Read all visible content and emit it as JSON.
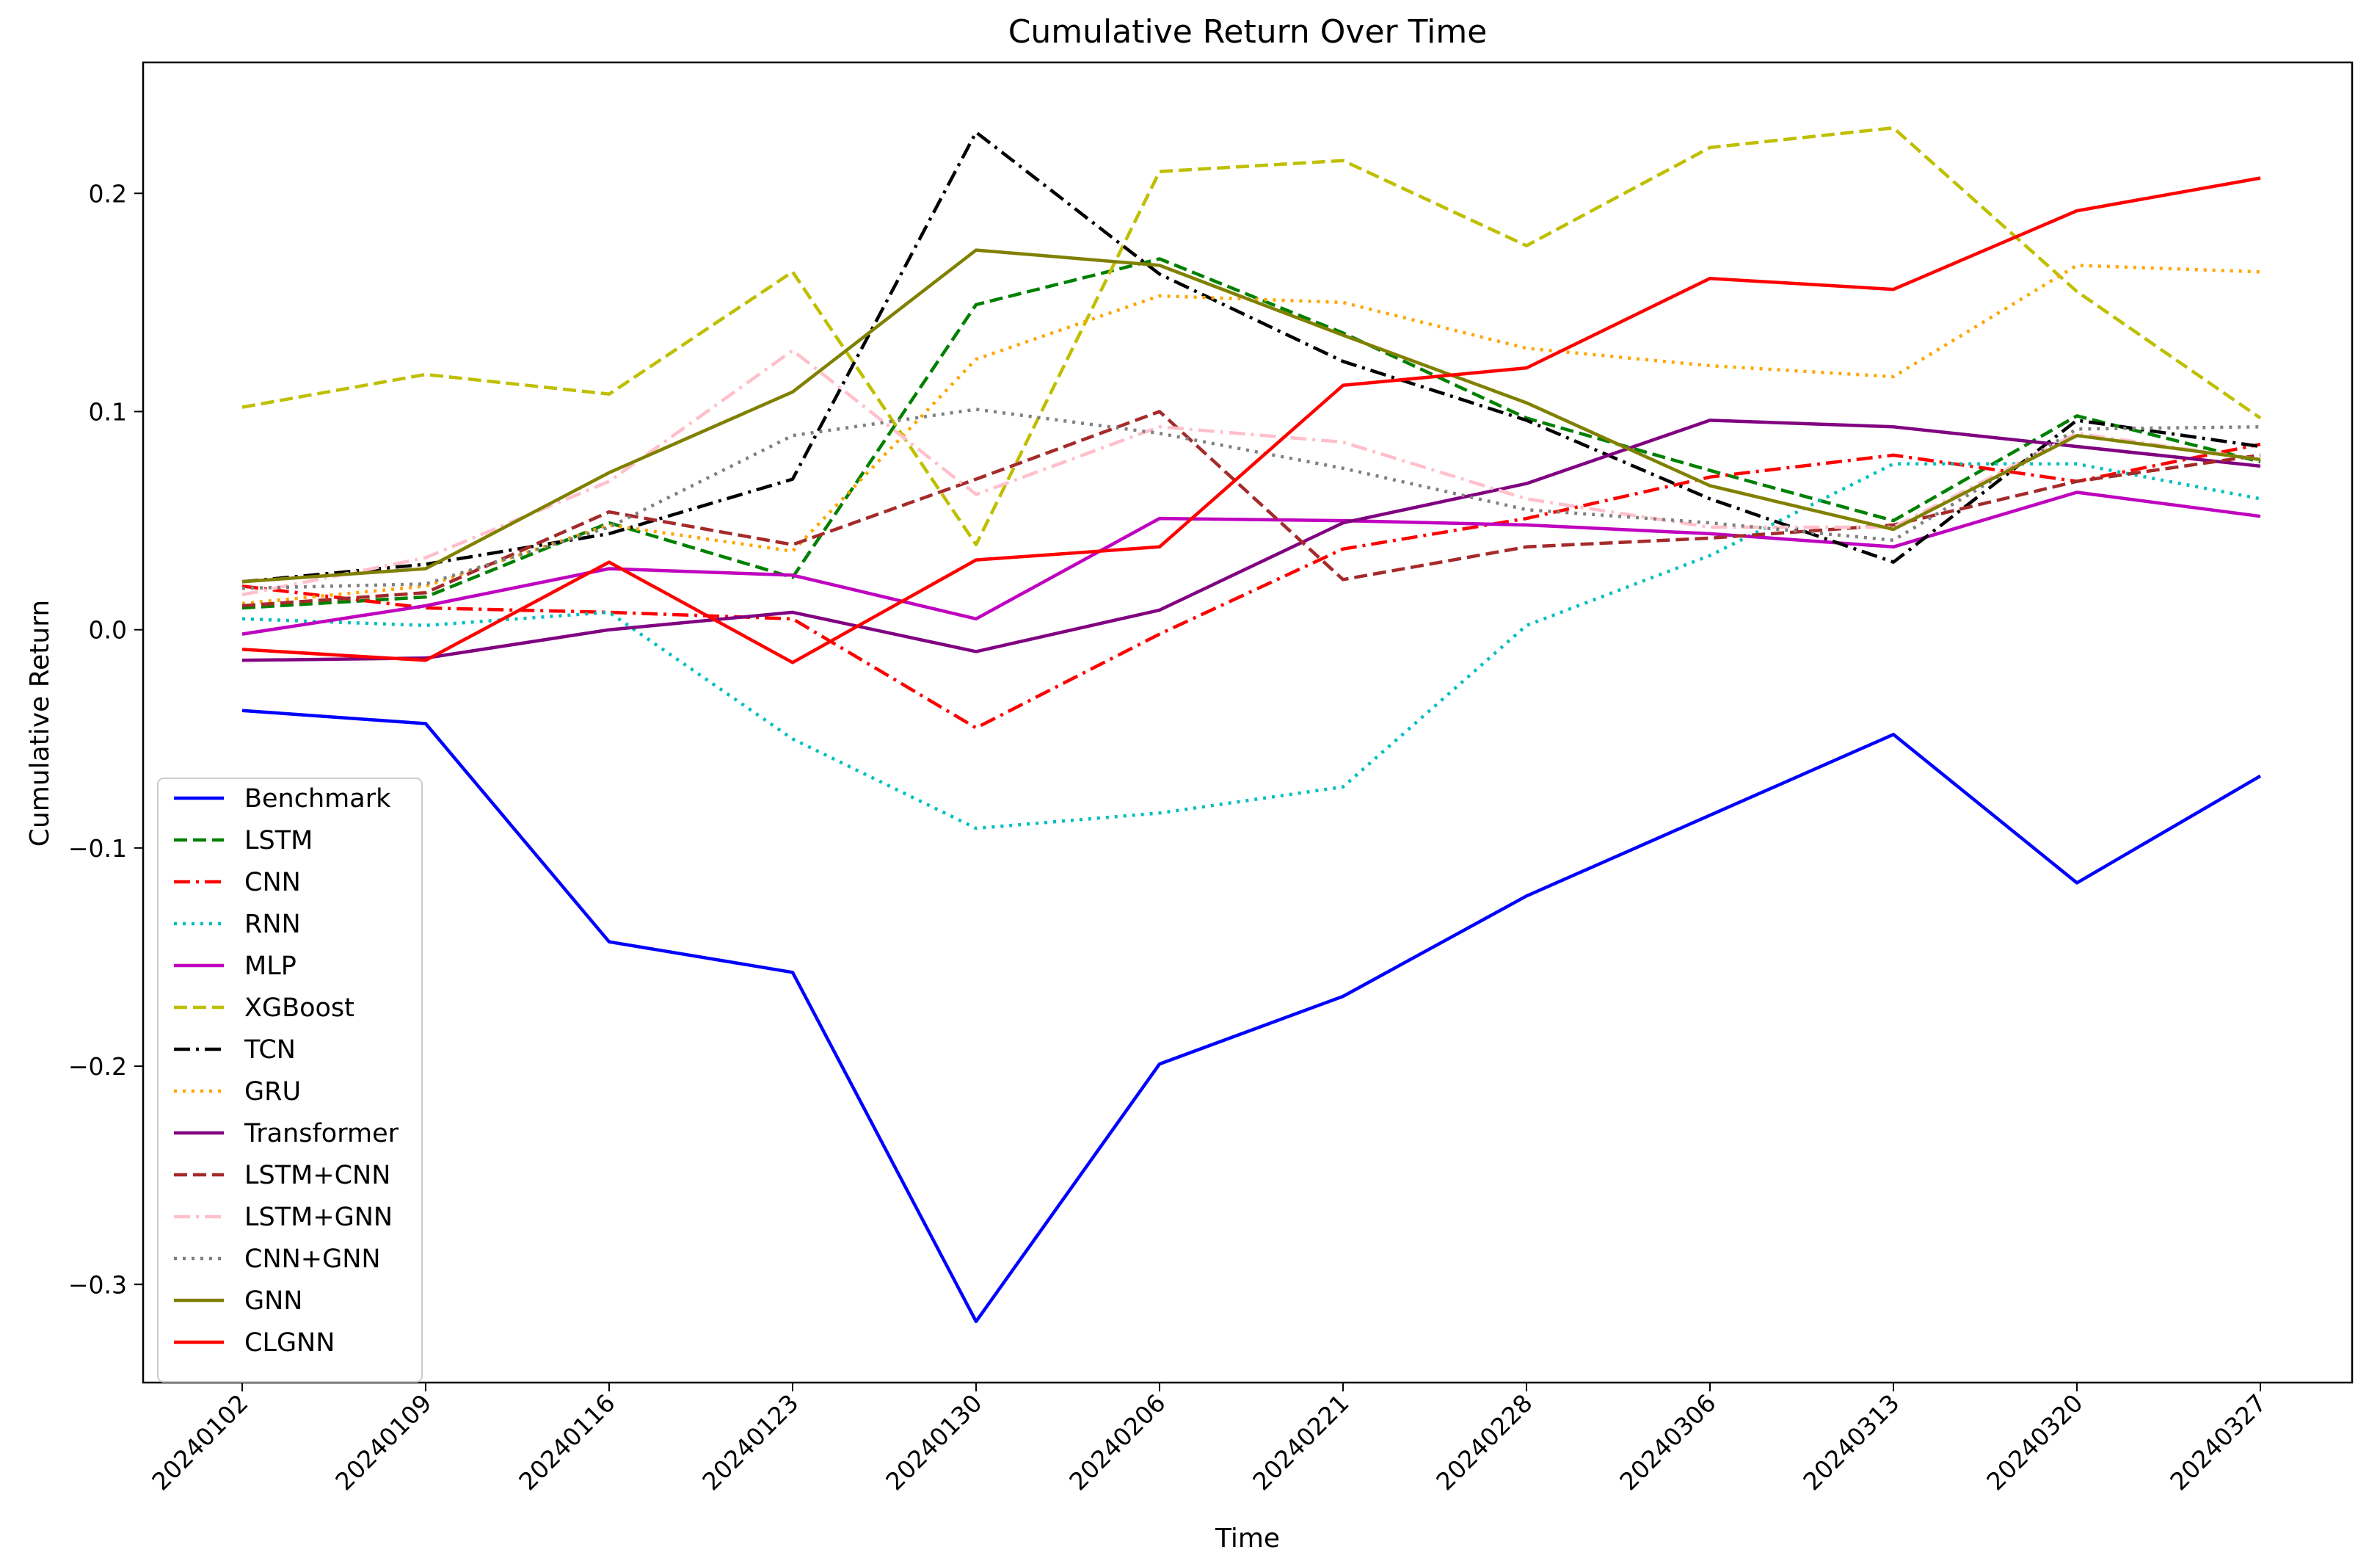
{
  "chart_data": {
    "type": "line",
    "title": "Cumulative Return Over Time",
    "xlabel": "Time",
    "ylabel": "Cumulative Return",
    "ylim": [
      -0.345,
      0.26
    ],
    "yticks": [
      -0.3,
      -0.2,
      -0.1,
      0.0,
      0.1,
      0.2
    ],
    "ytick_labels": [
      "−0.3",
      "−0.2",
      "−0.1",
      "0.0",
      "0.1",
      "0.2"
    ],
    "grid": false,
    "legend_position": "lower-left",
    "categories": [
      "20240102",
      "20240109",
      "20240116",
      "20240123",
      "20240130",
      "20240206",
      "20240221",
      "20240228",
      "20240306",
      "20240313",
      "20240320",
      "20240327"
    ],
    "series": [
      {
        "name": "Benchmark",
        "color": "#0000ff",
        "style": "solid",
        "values": [
          -0.037,
          -0.043,
          -0.143,
          -0.157,
          -0.317,
          -0.199,
          -0.168,
          -0.122,
          -0.085,
          -0.048,
          -0.116,
          -0.067
        ]
      },
      {
        "name": "LSTM",
        "color": "#008000",
        "style": "dashed",
        "values": [
          0.01,
          0.015,
          0.049,
          0.024,
          0.149,
          0.17,
          0.136,
          0.097,
          0.073,
          0.05,
          0.098,
          0.077
        ]
      },
      {
        "name": "CNN",
        "color": "#ff0000",
        "style": "dashdot",
        "values": [
          0.02,
          0.01,
          0.008,
          0.005,
          -0.045,
          -0.002,
          0.037,
          0.051,
          0.07,
          0.08,
          0.068,
          0.085
        ]
      },
      {
        "name": "RNN",
        "color": "#00bfbf",
        "style": "dotted",
        "values": [
          0.005,
          0.002,
          0.008,
          -0.05,
          -0.091,
          -0.084,
          -0.072,
          0.002,
          0.034,
          0.076,
          0.076,
          0.06
        ]
      },
      {
        "name": "MLP",
        "color": "#bf00bf",
        "style": "solid",
        "values": [
          -0.002,
          0.011,
          0.028,
          0.025,
          0.005,
          0.051,
          0.05,
          0.048,
          0.044,
          0.038,
          0.063,
          0.052
        ]
      },
      {
        "name": "XGBoost",
        "color": "#bfbf00",
        "style": "dashed",
        "values": [
          0.102,
          0.117,
          0.108,
          0.164,
          0.039,
          0.21,
          0.215,
          0.176,
          0.221,
          0.23,
          0.155,
          0.097
        ]
      },
      {
        "name": "TCN",
        "color": "#000000",
        "style": "dashdot",
        "values": [
          0.022,
          0.03,
          0.044,
          0.069,
          0.228,
          0.163,
          0.123,
          0.096,
          0.06,
          0.031,
          0.096,
          0.084
        ]
      },
      {
        "name": "GRU",
        "color": "#ffa500",
        "style": "dotted",
        "values": [
          0.012,
          0.02,
          0.048,
          0.036,
          0.124,
          0.153,
          0.15,
          0.129,
          0.121,
          0.116,
          0.167,
          0.164
        ]
      },
      {
        "name": "Transformer",
        "color": "#800080",
        "style": "solid",
        "values": [
          -0.014,
          -0.013,
          0.0,
          0.008,
          -0.01,
          0.009,
          0.049,
          0.067,
          0.096,
          0.093,
          0.084,
          0.075
        ]
      },
      {
        "name": "LSTM+CNN",
        "color": "#a52a2a",
        "style": "dashed",
        "values": [
          0.011,
          0.017,
          0.054,
          0.039,
          0.069,
          0.1,
          0.023,
          0.038,
          0.042,
          0.048,
          0.068,
          0.08
        ]
      },
      {
        "name": "LSTM+GNN",
        "color": "#ffc0cb",
        "style": "dashdot",
        "values": [
          0.016,
          0.033,
          0.068,
          0.128,
          0.062,
          0.093,
          0.086,
          0.06,
          0.047,
          0.047,
          0.09,
          0.078
        ]
      },
      {
        "name": "CNN+GNN",
        "color": "#808080",
        "style": "dotted",
        "values": [
          0.019,
          0.021,
          0.047,
          0.089,
          0.101,
          0.09,
          0.074,
          0.055,
          0.049,
          0.041,
          0.092,
          0.093
        ]
      },
      {
        "name": "GNN",
        "color": "#808000",
        "style": "solid",
        "values": [
          0.022,
          0.028,
          0.072,
          0.109,
          0.174,
          0.167,
          0.135,
          0.104,
          0.066,
          0.046,
          0.089,
          0.078
        ]
      },
      {
        "name": "CLGNN",
        "color": "#ff0000",
        "style": "solid",
        "values": [
          -0.009,
          -0.014,
          0.031,
          -0.015,
          0.032,
          0.038,
          0.112,
          0.12,
          0.161,
          0.156,
          0.192,
          0.207
        ]
      }
    ]
  }
}
